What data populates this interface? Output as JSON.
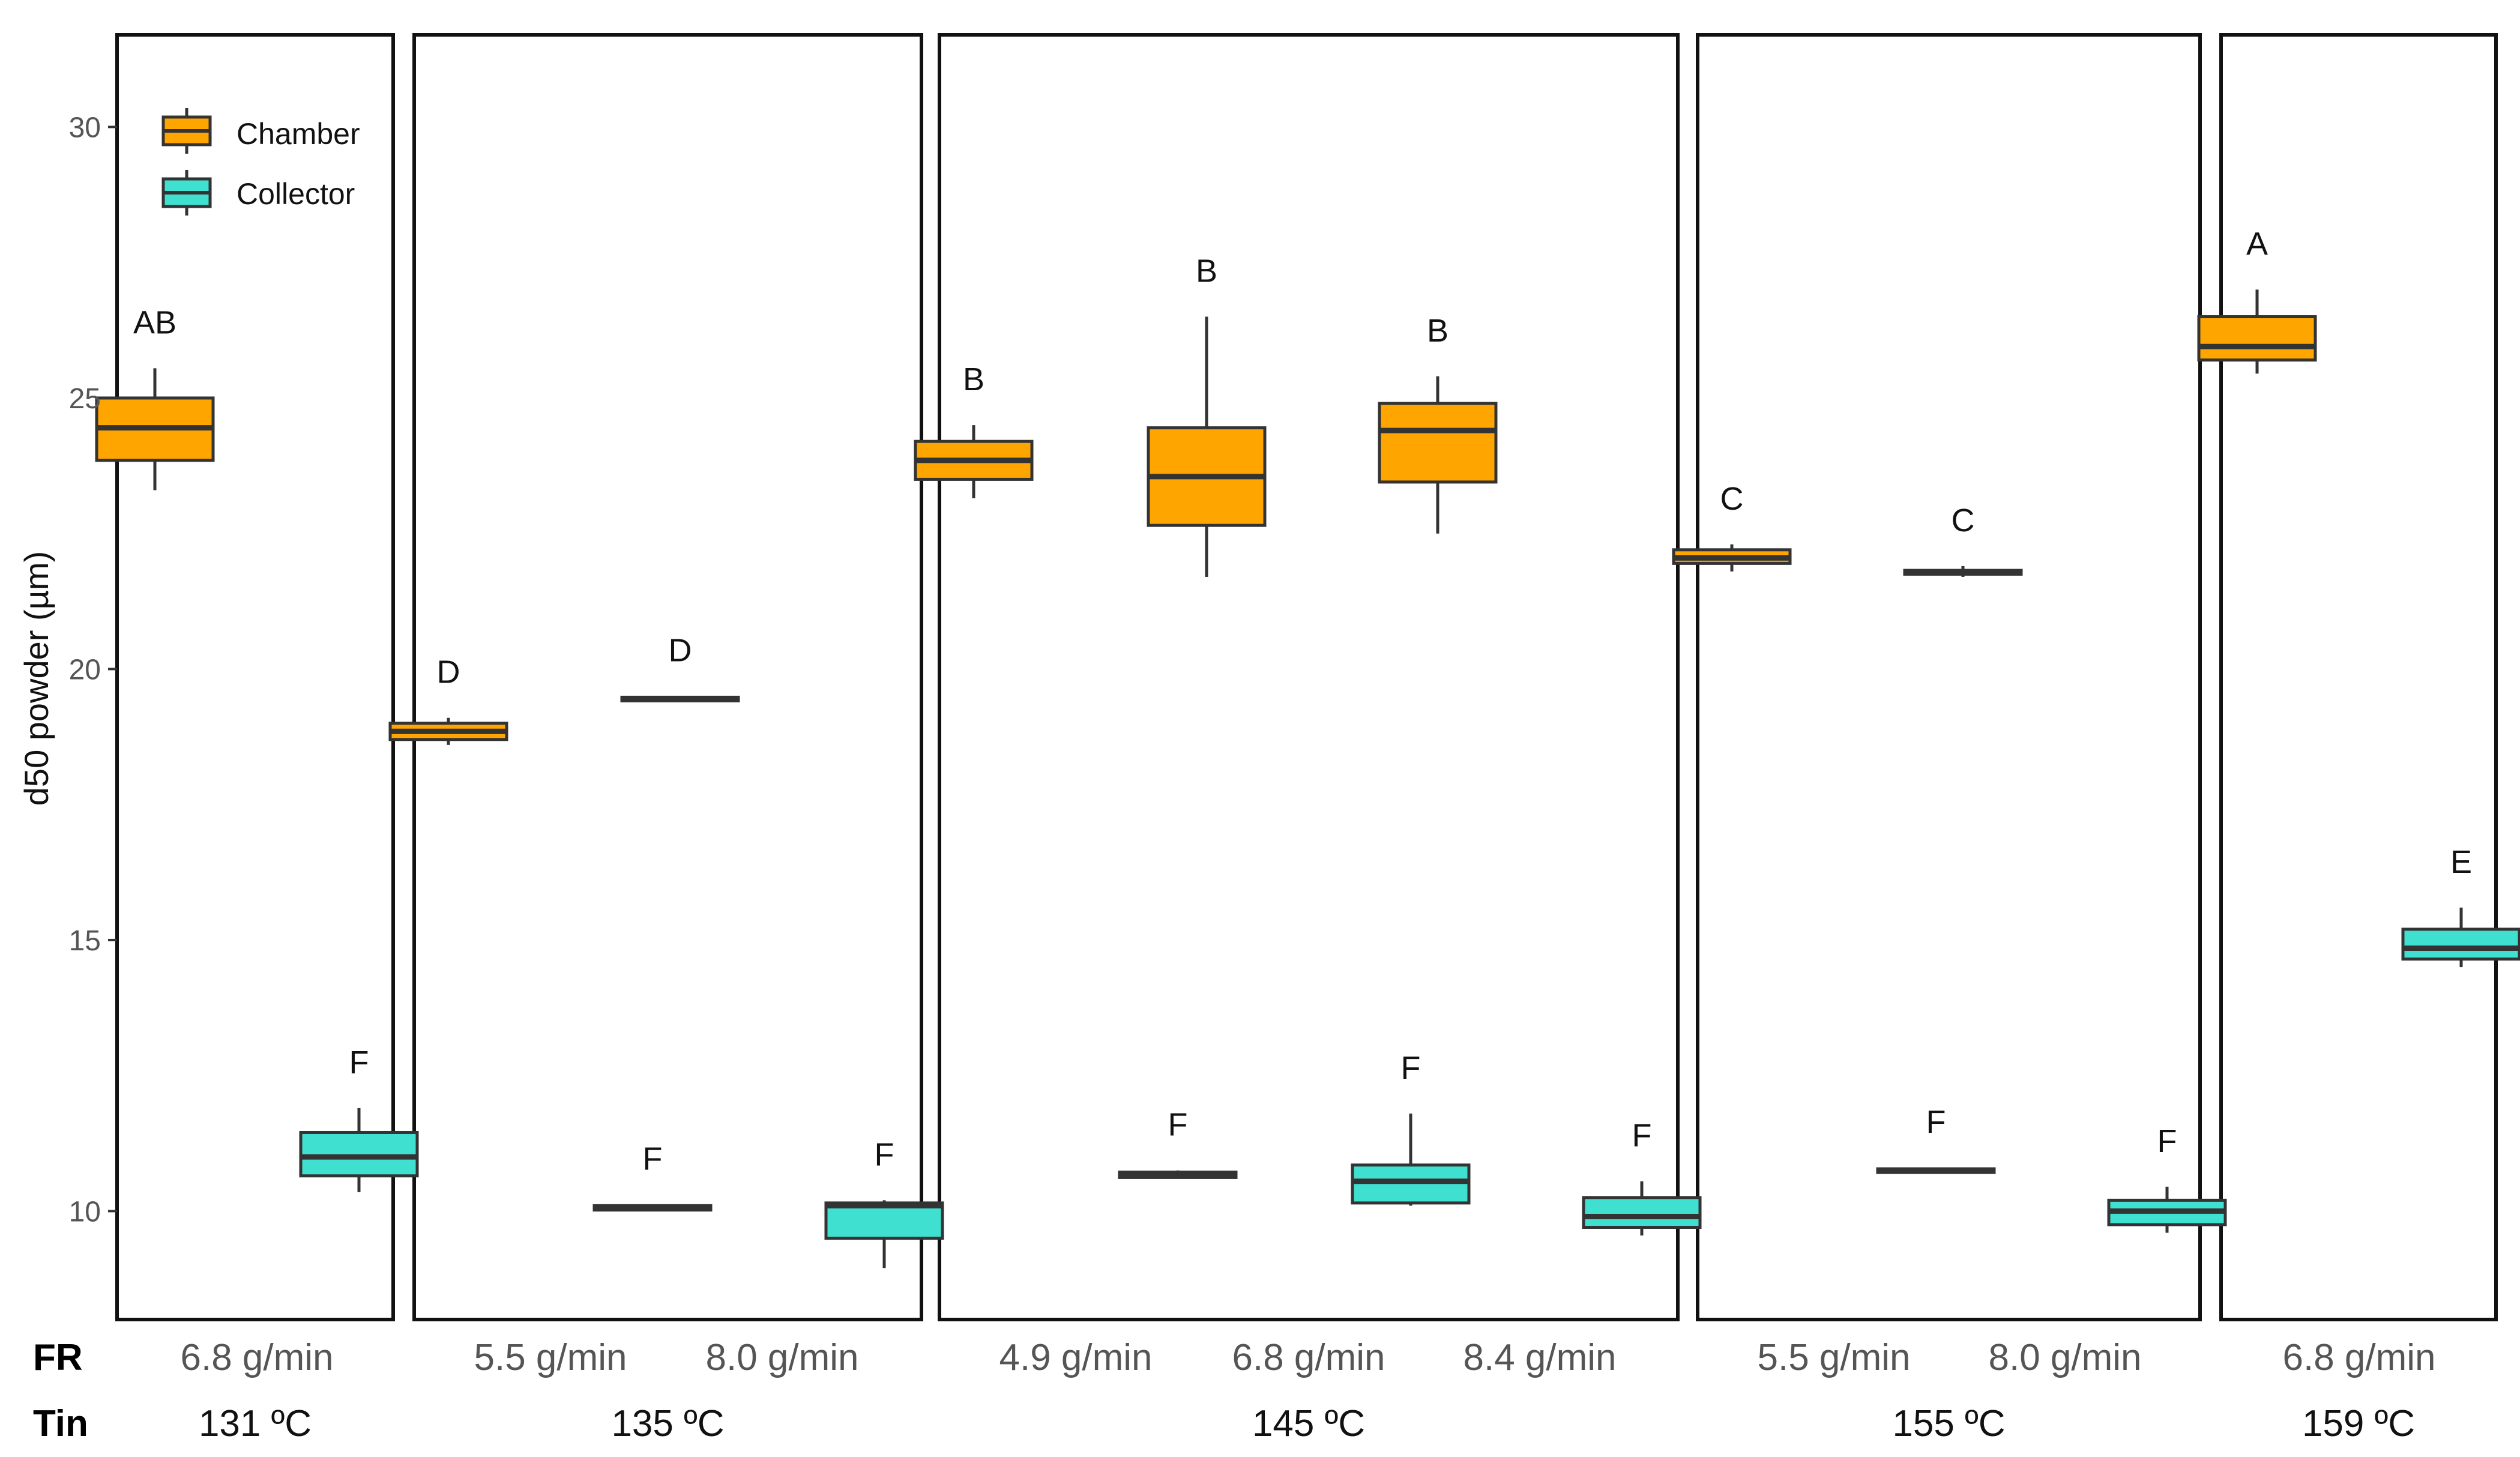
{
  "chart_data": {
    "type": "boxplot",
    "title": "",
    "ylabel": "d50 powder (µm)",
    "ylim": [
      8,
      31.7
    ],
    "yticks": [
      10,
      15,
      20,
      25,
      30
    ],
    "grid": false,
    "legend": {
      "position": "top-left",
      "entries": [
        {
          "name": "Chamber",
          "color": "#FFA500"
        },
        {
          "name": "Collector",
          "color": "#40E0D0"
        }
      ]
    },
    "row_labels": {
      "fr": "FR",
      "tin": "Tin"
    },
    "panels": [
      {
        "tin": "131 ºC",
        "groups": [
          {
            "fr": "6.8 g/min",
            "chamber": {
              "min": 23.3,
              "q1": 23.85,
              "median": 24.45,
              "q3": 25.0,
              "max": 25.55,
              "letter": "AB"
            },
            "collector": {
              "min": 10.35,
              "q1": 10.65,
              "median": 11.0,
              "q3": 11.45,
              "max": 11.9,
              "letter": "F"
            }
          }
        ]
      },
      {
        "tin": "135 ºC",
        "groups": [
          {
            "fr": "5.5 g/min",
            "chamber": {
              "min": 18.6,
              "q1": 18.7,
              "median": 18.85,
              "q3": 19.0,
              "max": 19.1,
              "letter": "D"
            },
            "collector": {
              "min": 10.0,
              "q1": 10.02,
              "median": 10.06,
              "q3": 10.1,
              "max": 10.12,
              "letter": "F"
            }
          }
        ]
      },
      {
        "tin": "",
        "groups": [
          {
            "fr": "8.0 g/min",
            "chamber": {
              "min": 19.4,
              "q1": 19.42,
              "median": 19.45,
              "q3": 19.48,
              "max": 19.5,
              "letter": "D"
            },
            "collector": {
              "min": 8.95,
              "q1": 9.5,
              "median": 10.1,
              "q3": 10.15,
              "max": 10.2,
              "letter": "F"
            }
          }
        ]
      },
      {
        "tin": "145 ºC",
        "groups": [
          {
            "fr": "4.9 g/min",
            "chamber": {
              "min": 23.15,
              "q1": 23.5,
              "median": 23.85,
              "q3": 24.2,
              "max": 24.5,
              "letter": "B"
            },
            "collector": {
              "min": 10.6,
              "q1": 10.62,
              "median": 10.67,
              "q3": 10.72,
              "max": 10.75,
              "letter": "F"
            }
          },
          {
            "fr": "6.8 g/min",
            "chamber": {
              "min": 21.7,
              "q1": 22.65,
              "median": 23.55,
              "q3": 24.45,
              "max": 26.5,
              "letter": "B"
            },
            "collector": {
              "min": 10.1,
              "q1": 10.15,
              "median": 10.55,
              "q3": 10.85,
              "max": 11.8,
              "letter": "F"
            }
          },
          {
            "fr": "8.4 g/min",
            "chamber": {
              "min": 22.5,
              "q1": 23.45,
              "median": 24.4,
              "q3": 24.9,
              "max": 25.4,
              "letter": "B"
            },
            "collector": {
              "min": 9.55,
              "q1": 9.7,
              "median": 9.9,
              "q3": 10.25,
              "max": 10.55,
              "letter": "F"
            }
          }
        ]
      },
      {
        "tin": "155 ºC",
        "groups": [
          {
            "fr": "5.5 g/min",
            "chamber": {
              "min": 21.8,
              "q1": 21.95,
              "median": 22.05,
              "q3": 22.2,
              "max": 22.3,
              "letter": "C"
            },
            "collector": {
              "min": 10.7,
              "q1": 10.72,
              "median": 10.75,
              "q3": 10.78,
              "max": 10.8,
              "letter": "F"
            }
          }
        ]
      },
      {
        "tin": "",
        "groups": [
          {
            "fr": "8.0 g/min",
            "chamber": {
              "min": 21.7,
              "q1": 21.75,
              "median": 21.78,
              "q3": 21.82,
              "max": 21.9,
              "letter": "C"
            },
            "collector": {
              "min": 9.6,
              "q1": 9.75,
              "median": 10.0,
              "q3": 10.2,
              "max": 10.45,
              "letter": "F"
            }
          }
        ]
      },
      {
        "tin": "159 ºC",
        "groups": [
          {
            "fr": "6.8 g/min",
            "chamber": {
              "min": 25.45,
              "q1": 25.7,
              "median": 25.95,
              "q3": 26.5,
              "max": 27.0,
              "letter": "A"
            },
            "collector": {
              "min": 14.5,
              "q1": 14.65,
              "median": 14.85,
              "q3": 15.2,
              "max": 15.6,
              "letter": "E"
            }
          }
        ]
      }
    ]
  }
}
